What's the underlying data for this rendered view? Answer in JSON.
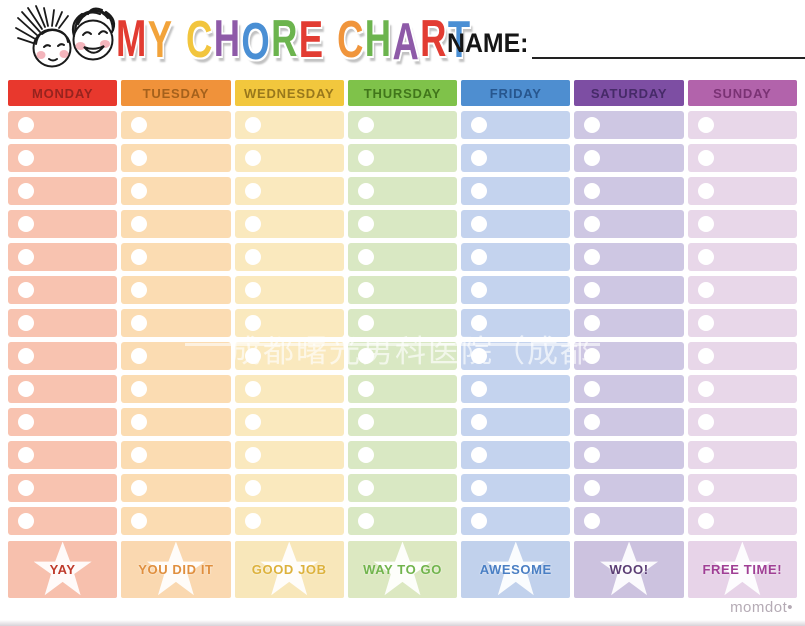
{
  "header": {
    "logo": "two-kids-faces-illustration",
    "title": "MY CHORE CHART",
    "title_letters": [
      {
        "char": "M",
        "color": "#e23c32"
      },
      {
        "char": "Y",
        "color": "#f2a33a"
      },
      {
        "char": " "
      },
      {
        "char": "C",
        "color": "#f2c53d"
      },
      {
        "char": "H",
        "color": "#8e5aa8"
      },
      {
        "char": "O",
        "color": "#4a8fd4"
      },
      {
        "char": "R",
        "color": "#6cb44e"
      },
      {
        "char": "E",
        "color": "#e23c32"
      },
      {
        "char": " "
      },
      {
        "char": "C",
        "color": "#f0953c"
      },
      {
        "char": "H",
        "color": "#6cb44e"
      },
      {
        "char": "A",
        "color": "#8e5aa8"
      },
      {
        "char": "R",
        "color": "#e23c32"
      },
      {
        "char": "T",
        "color": "#4a8fd4"
      }
    ],
    "name_label": "NAME:",
    "name_value": ""
  },
  "grid": {
    "rows_per_column": 13,
    "columns": [
      {
        "day": "MONDAY",
        "header_bg": "#e8382d",
        "header_text_color": "#96231e",
        "row_bg": "#f8c3b0",
        "footer_bg": "#f7c0ad",
        "footer_label": "YAY",
        "footer_label_color": "#bf3a2b"
      },
      {
        "day": "TUESDAY",
        "header_bg": "#f0923a",
        "header_text_color": "#a5611c",
        "row_bg": "#fbdcb2",
        "footer_bg": "#fad8b0",
        "footer_label": "YOU DID IT",
        "footer_label_color": "#e08f3e"
      },
      {
        "day": "WEDNESDAY",
        "header_bg": "#f2c73d",
        "header_text_color": "#99781c",
        "row_bg": "#fae9be",
        "footer_bg": "#f8e7ba",
        "footer_label": "GOOD JOB",
        "footer_label_color": "#ddb23c"
      },
      {
        "day": "THURSDAY",
        "header_bg": "#7fc24a",
        "header_text_color": "#41761b",
        "row_bg": "#d9e8c3",
        "footer_bg": "#dce8c1",
        "footer_label": "WAY TO GO",
        "footer_label_color": "#71b44c"
      },
      {
        "day": "FRIDAY",
        "header_bg": "#4e8ed0",
        "header_text_color": "#27568e",
        "row_bg": "#c4d3ee",
        "footer_bg": "#c1d1ec",
        "footer_label": "AWESOME",
        "footer_label_color": "#4a7fc4"
      },
      {
        "day": "SATURDAY",
        "header_bg": "#7d4ea3",
        "header_text_color": "#462a68",
        "row_bg": "#cec7e3",
        "footer_bg": "#ccc2df",
        "footer_label": "WOO!",
        "footer_label_color": "#5b3d74"
      },
      {
        "day": "SUNDAY",
        "header_bg": "#b263ab",
        "header_text_color": "#7a3274",
        "row_bg": "#e8d7e9",
        "footer_bg": "#e7d3e8",
        "footer_label": "FREE TIME!",
        "footer_label_color": "#a03f95"
      }
    ]
  },
  "watermark": {
    "text": "成都曙光男科医院（成都"
  },
  "brand": {
    "label": "momdot•"
  }
}
